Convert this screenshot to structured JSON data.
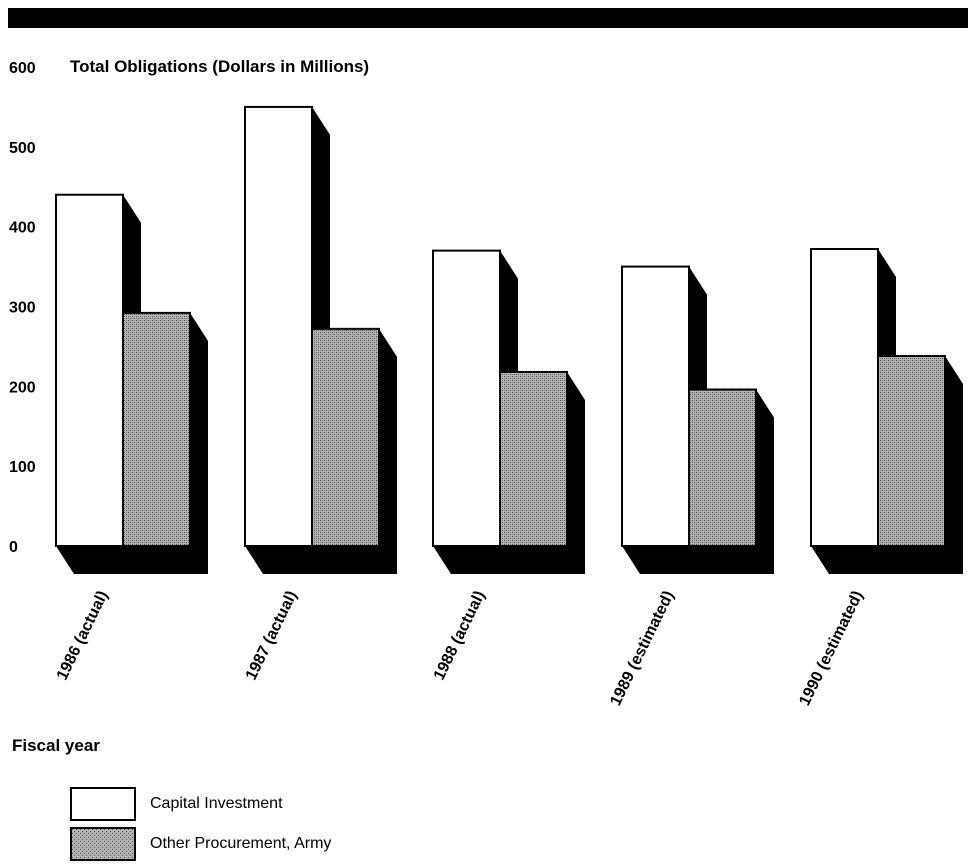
{
  "chart_data": {
    "type": "bar",
    "title": "Total Obligations (Dollars in Millions)",
    "xlabel": "Fiscal year",
    "ylabel": "",
    "ylim": [
      0,
      600
    ],
    "yticks": [
      0,
      100,
      200,
      300,
      400,
      500,
      600
    ],
    "categories": [
      "1986 (actual)",
      "1987 (actual)",
      "1988 (actual)",
      "1989 (estimated)",
      "1990 (estimated)"
    ],
    "series": [
      {
        "name": "Capital Investment",
        "values": [
          440,
          550,
          370,
          350,
          372
        ],
        "color": "#ffffff"
      },
      {
        "name": "Other Procurement, Army",
        "values": [
          292,
          272,
          218,
          196,
          238
        ],
        "color": "#9a9a9a"
      }
    ],
    "legend": "bottom-left",
    "grid": false,
    "style": "3d-shadow"
  }
}
